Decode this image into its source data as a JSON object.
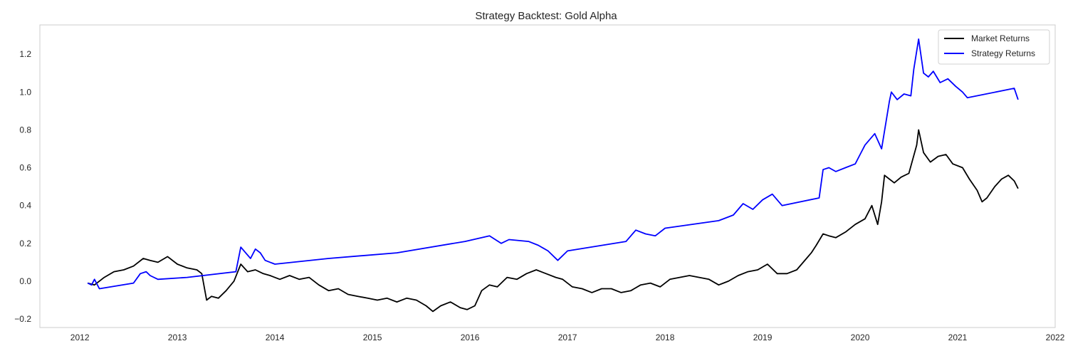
{
  "chart_data": {
    "type": "line",
    "title": "Strategy Backtest: Gold Alpha",
    "xlabel": "",
    "ylabel": "",
    "xlim": [
      2011.59,
      2022.0
    ],
    "ylim": [
      -0.245,
      1.355
    ],
    "x_ticks": [
      "2012",
      "2013",
      "2014",
      "2015",
      "2016",
      "2017",
      "2018",
      "2019",
      "2020",
      "2021",
      "2022"
    ],
    "y_ticks": [
      "−0.2",
      "0.0",
      "0.2",
      "0.4",
      "0.6",
      "0.8",
      "1.0",
      "1.2"
    ],
    "grid": false,
    "legend_position": "top-right",
    "series": [
      {
        "name": "Market Returns",
        "color": "#000000",
        "x": [
          2012.08,
          2012.15,
          2012.25,
          2012.35,
          2012.45,
          2012.55,
          2012.65,
          2012.72,
          2012.8,
          2012.9,
          2013.0,
          2013.1,
          2013.2,
          2013.25,
          2013.3,
          2013.35,
          2013.42,
          2013.5,
          2013.58,
          2013.65,
          2013.72,
          2013.8,
          2013.88,
          2013.95,
          2014.05,
          2014.15,
          2014.25,
          2014.35,
          2014.45,
          2014.55,
          2014.65,
          2014.75,
          2014.85,
          2014.95,
          2015.05,
          2015.15,
          2015.25,
          2015.35,
          2015.45,
          2015.55,
          2015.62,
          2015.7,
          2015.8,
          2015.9,
          2015.97,
          2016.05,
          2016.12,
          2016.2,
          2016.28,
          2016.38,
          2016.48,
          2016.58,
          2016.68,
          2016.78,
          2016.88,
          2016.95,
          2017.05,
          2017.15,
          2017.25,
          2017.35,
          2017.45,
          2017.55,
          2017.65,
          2017.75,
          2017.85,
          2017.95,
          2018.05,
          2018.15,
          2018.25,
          2018.35,
          2018.45,
          2018.55,
          2018.65,
          2018.75,
          2018.85,
          2018.95,
          2019.05,
          2019.15,
          2019.25,
          2019.35,
          2019.45,
          2019.5,
          2019.55,
          2019.62,
          2019.68,
          2019.75,
          2019.85,
          2019.95,
          2020.05,
          2020.12,
          2020.18,
          2020.22,
          2020.25,
          2020.3,
          2020.35,
          2020.42,
          2020.5,
          2020.58,
          2020.6,
          2020.65,
          2020.72,
          2020.8,
          2020.88,
          2020.95,
          2021.05,
          2021.12,
          2021.2,
          2021.25,
          2021.3,
          2021.38,
          2021.45,
          2021.52,
          2021.58,
          2021.62
        ],
        "values": [
          -0.01,
          -0.02,
          0.02,
          0.05,
          0.06,
          0.08,
          0.12,
          0.11,
          0.1,
          0.13,
          0.09,
          0.07,
          0.06,
          0.04,
          -0.1,
          -0.08,
          -0.09,
          -0.05,
          0.0,
          0.09,
          0.05,
          0.06,
          0.04,
          0.03,
          0.01,
          0.03,
          0.01,
          0.02,
          -0.02,
          -0.05,
          -0.04,
          -0.07,
          -0.08,
          -0.09,
          -0.1,
          -0.09,
          -0.11,
          -0.09,
          -0.1,
          -0.13,
          -0.16,
          -0.13,
          -0.11,
          -0.14,
          -0.15,
          -0.13,
          -0.05,
          -0.02,
          -0.03,
          0.02,
          0.01,
          0.04,
          0.06,
          0.04,
          0.02,
          0.01,
          -0.03,
          -0.04,
          -0.06,
          -0.04,
          -0.04,
          -0.06,
          -0.05,
          -0.02,
          -0.01,
          -0.03,
          0.01,
          0.02,
          0.03,
          0.02,
          0.01,
          -0.02,
          0.0,
          0.03,
          0.05,
          0.06,
          0.09,
          0.04,
          0.04,
          0.06,
          0.12,
          0.15,
          0.19,
          0.25,
          0.24,
          0.23,
          0.26,
          0.3,
          0.33,
          0.4,
          0.3,
          0.42,
          0.56,
          0.54,
          0.52,
          0.55,
          0.57,
          0.72,
          0.8,
          0.68,
          0.63,
          0.66,
          0.67,
          0.62,
          0.6,
          0.54,
          0.48,
          0.42,
          0.44,
          0.5,
          0.54,
          0.56,
          0.53,
          0.49
        ]
      },
      {
        "name": "Strategy Returns",
        "color": "#0000ff",
        "x": [
          2012.08,
          2012.12,
          2012.15,
          2012.2,
          2012.55,
          2012.62,
          2012.68,
          2012.72,
          2012.8,
          2013.1,
          2013.6,
          2013.65,
          2013.7,
          2013.75,
          2013.8,
          2013.85,
          2013.9,
          2014.0,
          2014.55,
          2015.25,
          2015.95,
          2016.2,
          2016.32,
          2016.4,
          2016.6,
          2016.7,
          2016.8,
          2016.9,
          2017.0,
          2017.6,
          2017.7,
          2017.8,
          2017.9,
          2018.0,
          2018.55,
          2018.7,
          2018.8,
          2018.9,
          2019.0,
          2019.1,
          2019.2,
          2019.58,
          2019.62,
          2019.68,
          2019.75,
          2019.85,
          2019.95,
          2020.0,
          2020.05,
          2020.15,
          2020.22,
          2020.3,
          2020.32,
          2020.38,
          2020.45,
          2020.52,
          2020.55,
          2020.6,
          2020.65,
          2020.7,
          2020.75,
          2020.82,
          2020.9,
          2020.98,
          2021.05,
          2021.1,
          2021.58,
          2021.62
        ],
        "values": [
          -0.01,
          -0.02,
          0.01,
          -0.04,
          -0.01,
          0.04,
          0.05,
          0.03,
          0.01,
          0.02,
          0.05,
          0.18,
          0.15,
          0.12,
          0.17,
          0.15,
          0.11,
          0.09,
          0.12,
          0.15,
          0.21,
          0.24,
          0.2,
          0.22,
          0.21,
          0.19,
          0.16,
          0.11,
          0.16,
          0.21,
          0.27,
          0.25,
          0.24,
          0.28,
          0.32,
          0.35,
          0.41,
          0.38,
          0.43,
          0.46,
          0.4,
          0.44,
          0.59,
          0.6,
          0.58,
          0.6,
          0.62,
          0.67,
          0.72,
          0.78,
          0.7,
          0.95,
          1.0,
          0.96,
          0.99,
          0.98,
          1.12,
          1.28,
          1.1,
          1.08,
          1.11,
          1.05,
          1.07,
          1.03,
          1.0,
          0.97,
          1.02,
          0.96
        ]
      }
    ]
  }
}
